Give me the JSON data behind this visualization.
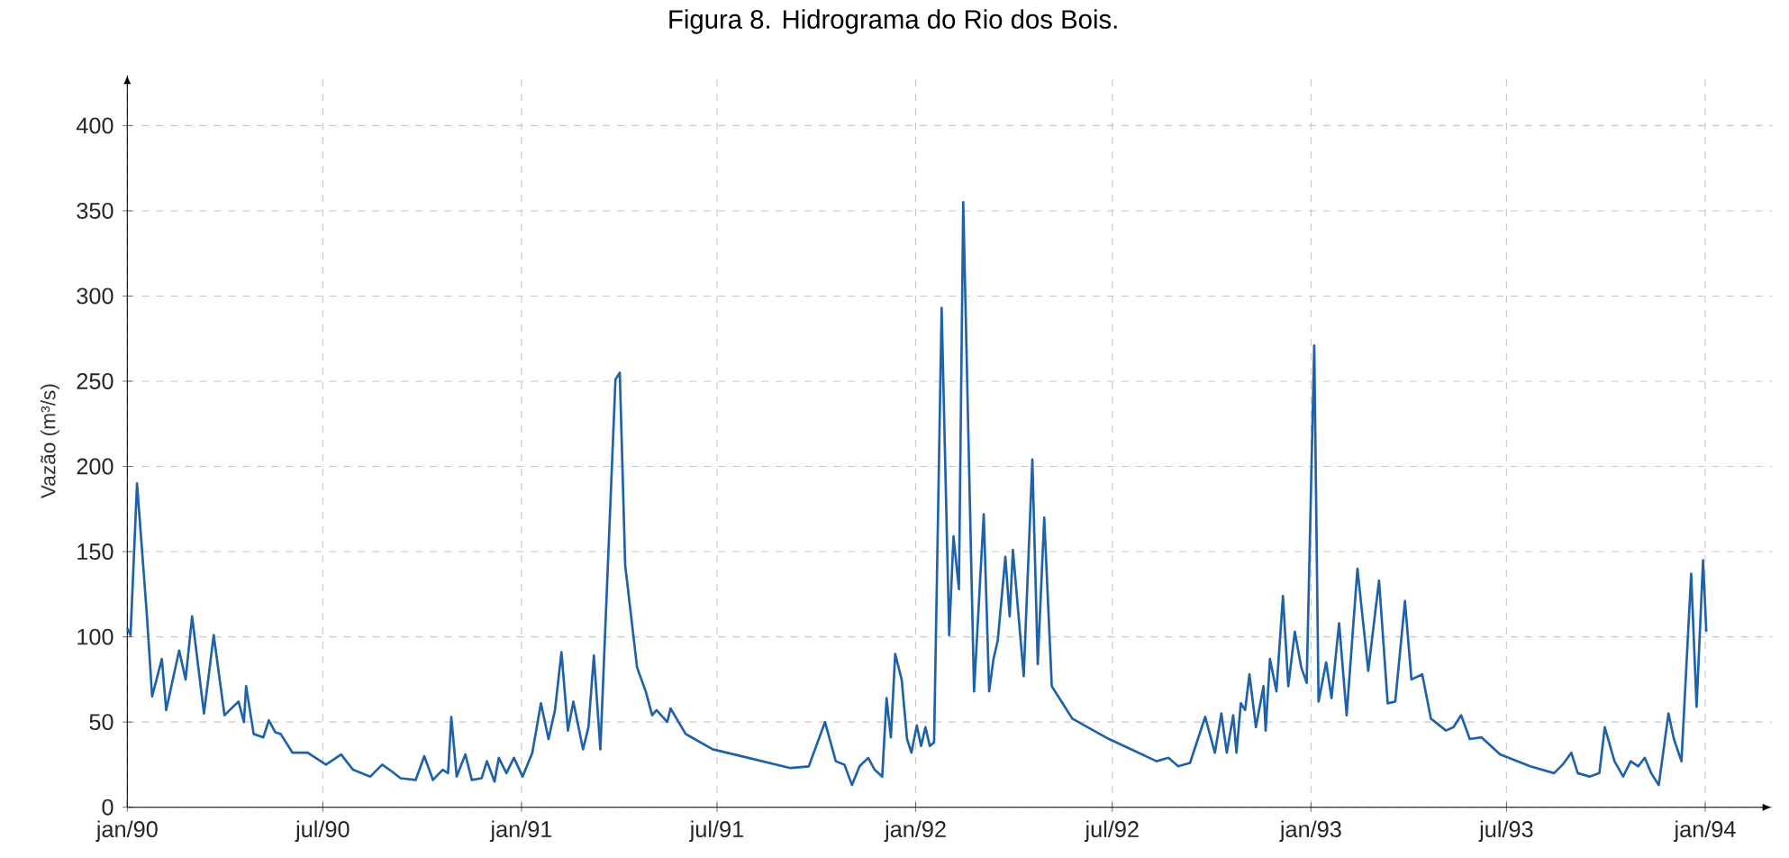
{
  "chart_data": {
    "type": "line",
    "title": "Figura 8. Hidrograma do Rio dos Bois.",
    "ylabel": "Vazão (m³/s)",
    "xlim": [
      "1990-01-01",
      "1994-03-04"
    ],
    "ylim": [
      0,
      430
    ],
    "xticks": [
      {
        "value": "1990-01-01",
        "label": "jan/90"
      },
      {
        "value": "1990-07-01",
        "label": "jul/90"
      },
      {
        "value": "1991-01-01",
        "label": "jan/91"
      },
      {
        "value": "1991-07-01",
        "label": "jul/91"
      },
      {
        "value": "1992-01-01",
        "label": "jan/92"
      },
      {
        "value": "1992-07-01",
        "label": "jul/92"
      },
      {
        "value": "1993-01-01",
        "label": "jan/93"
      },
      {
        "value": "1993-07-01",
        "label": "jul/93"
      },
      {
        "value": "1994-01-01",
        "label": "jan/94"
      }
    ],
    "yticks": [
      0,
      50,
      100,
      150,
      200,
      250,
      300,
      350,
      400
    ],
    "grid": true,
    "x": [
      "1990-01-01",
      "1990-01-04",
      "1990-01-10",
      "1990-01-19",
      "1990-01-24",
      "1990-02-02",
      "1990-02-06",
      "1990-02-18",
      "1990-02-24",
      "1990-03-02",
      "1990-03-13",
      "1990-03-22",
      "1990-04-01",
      "1990-04-09",
      "1990-04-14",
      "1990-04-19",
      "1990-04-21",
      "1990-04-28",
      "1990-05-07",
      "1990-05-12",
      "1990-05-18",
      "1990-05-23",
      "1990-06-03",
      "1990-06-17",
      "1990-07-04",
      "1990-07-18",
      "1990-07-29",
      "1990-08-14",
      "1990-08-25",
      "1990-09-03",
      "1990-09-11",
      "1990-09-25",
      "1990-10-03",
      "1990-10-11",
      "1990-10-20",
      "1990-10-25",
      "1990-10-28",
      "1990-11-02",
      "1990-11-10",
      "1990-11-16",
      "1990-11-25",
      "1990-11-30",
      "1990-12-07",
      "1990-12-11",
      "1990-12-18",
      "1990-12-25",
      "1991-01-02",
      "1991-01-11",
      "1991-01-19",
      "1991-01-26",
      "1991-02-01",
      "1991-02-07",
      "1991-02-13",
      "1991-02-18",
      "1991-02-27",
      "1991-03-04",
      "1991-03-09",
      "1991-03-15",
      "1991-03-29",
      "1991-04-02",
      "1991-04-07",
      "1991-04-18",
      "1991-04-26",
      "1991-05-02",
      "1991-05-06",
      "1991-05-16",
      "1991-05-19",
      "1991-06-02",
      "1991-06-27",
      "1991-07-30",
      "1991-09-07",
      "1991-09-24",
      "1991-10-09",
      "1991-10-19",
      "1991-10-27",
      "1991-11-03",
      "1991-11-10",
      "1991-11-18",
      "1991-11-24",
      "1991-12-01",
      "1991-12-05",
      "1991-12-09",
      "1991-12-13",
      "1991-12-19",
      "1991-12-24",
      "1991-12-28",
      "1992-01-02",
      "1992-01-06",
      "1992-01-10",
      "1992-01-14",
      "1992-01-18",
      "1992-01-25",
      "1992-02-01",
      "1992-02-05",
      "1992-02-10",
      "1992-02-14",
      "1992-02-24",
      "1992-03-04",
      "1992-03-09",
      "1992-03-13",
      "1992-03-17",
      "1992-03-24",
      "1992-03-28",
      "1992-03-31",
      "1992-04-10",
      "1992-04-18",
      "1992-04-23",
      "1992-04-29",
      "1992-05-06",
      "1992-05-25",
      "1992-06-28",
      "1992-08-11",
      "1992-08-22",
      "1992-08-31",
      "1992-09-11",
      "1992-09-25",
      "1992-10-04",
      "1992-10-10",
      "1992-10-15",
      "1992-10-21",
      "1992-10-24",
      "1992-10-28",
      "1992-11-01",
      "1992-11-05",
      "1992-11-11",
      "1992-11-18",
      "1992-11-20",
      "1992-11-24",
      "1992-11-30",
      "1992-12-06",
      "1992-12-11",
      "1992-12-17",
      "1992-12-23",
      "1992-12-28",
      "1993-01-04",
      "1993-01-08",
      "1993-01-15",
      "1993-01-20",
      "1993-01-27",
      "1993-02-03",
      "1993-02-13",
      "1993-02-23",
      "1993-03-05",
      "1993-03-13",
      "1993-03-20",
      "1993-03-29",
      "1993-04-04",
      "1993-04-14",
      "1993-04-22",
      "1993-05-06",
      "1993-05-13",
      "1993-05-20",
      "1993-05-28",
      "1993-06-08",
      "1993-06-25",
      "1993-07-23",
      "1993-08-14",
      "1993-08-22",
      "1993-08-30",
      "1993-09-05",
      "1993-09-16",
      "1993-09-25",
      "1993-09-30",
      "1993-10-09",
      "1993-10-17",
      "1993-10-24",
      "1993-10-31",
      "1993-11-06",
      "1993-11-12",
      "1993-11-19",
      "1993-11-28",
      "1993-12-03",
      "1993-12-10",
      "1993-12-19",
      "1993-12-24",
      "1993-12-30",
      "1994-01-02"
    ],
    "series": [
      {
        "color": "#1f62a8",
        "values": [
          105,
          101,
          190,
          114,
          65,
          87,
          57,
          92,
          75,
          112,
          55,
          101,
          54,
          59,
          62,
          50,
          71,
          43,
          41,
          51,
          44,
          43,
          32,
          32,
          25,
          31,
          22,
          18,
          25,
          21,
          17,
          16,
          30,
          16,
          22,
          20,
          53,
          18,
          31,
          16,
          17,
          27,
          15,
          29,
          20,
          29,
          18,
          32,
          61,
          40,
          57,
          91,
          45,
          62,
          34,
          47,
          89,
          34,
          251,
          255,
          142,
          82,
          68,
          54,
          57,
          50,
          58,
          43,
          34,
          29,
          23,
          24,
          50,
          27,
          25,
          13,
          24,
          29,
          22,
          18,
          64,
          41,
          90,
          75,
          40,
          32,
          48,
          36,
          47,
          36,
          38,
          293,
          101,
          159,
          128,
          355,
          68,
          172,
          68,
          87,
          98,
          147,
          112,
          151,
          77,
          204,
          84,
          170,
          71,
          52,
          40,
          27,
          29,
          24,
          26,
          53,
          32,
          55,
          32,
          54,
          32,
          61,
          57,
          78,
          47,
          71,
          45,
          87,
          68,
          124,
          71,
          103,
          82,
          73,
          271,
          62,
          85,
          64,
          108,
          54,
          140,
          80,
          133,
          61,
          62,
          121,
          75,
          78,
          52,
          45,
          47,
          54,
          40,
          41,
          31,
          24,
          20,
          25,
          32,
          20,
          18,
          20,
          47,
          27,
          18,
          27,
          24,
          29,
          20,
          13,
          55,
          40,
          27,
          137,
          59,
          145,
          103
        ]
      }
    ]
  }
}
